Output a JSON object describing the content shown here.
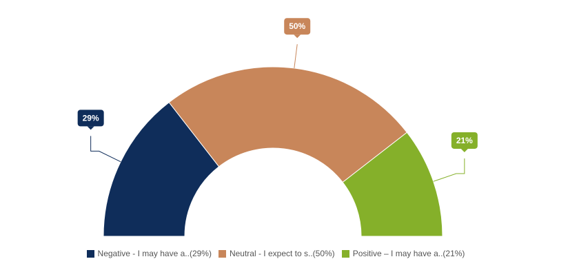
{
  "chart_data": {
    "type": "pie",
    "variant": "semi-donut",
    "categories": [
      "Negative - I may have a..(29%)",
      "Neutral - I expect to s..(50%)",
      "Positive – I may have a..(21%)"
    ],
    "values": [
      29,
      50,
      21
    ],
    "data_labels": [
      "29%",
      "50%",
      "21%"
    ],
    "colors": [
      "#0f2d5a",
      "#c8865a",
      "#85b02a"
    ],
    "legend_position": "bottom-center"
  }
}
